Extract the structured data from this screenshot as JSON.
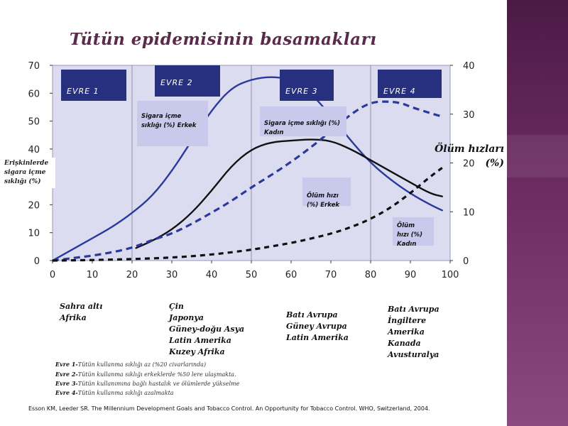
{
  "title": "Tütün epidemisinin basamakları",
  "right_axis_title": "Ölüm hızları (%)",
  "left_axis_title": "Erişkinlerde sigara içme sıklığı (%)",
  "stages": [
    {
      "label": "EVRE 1"
    },
    {
      "label": "EVRE 2"
    },
    {
      "label": "EVRE 3"
    },
    {
      "label": "EVRE 4"
    }
  ],
  "series_labels": [
    "Sigara içme sıklığı (%) Erkek",
    "Sigara içme sıklığı (%) Kadın",
    "Ölüm hızı (%) Erkek",
    "Ölüm hızı (%) Kadın"
  ],
  "regions": [
    [
      "Sahra altı",
      "Afrika"
    ],
    [
      "Çin",
      "Japonya",
      "Güney-doğu Asya",
      "Latin Amerika",
      "Kuzey Afrika"
    ],
    [
      "Batı Avrupa",
      "Güney Avrupa",
      "Latin Amerika"
    ],
    [
      "Batı Avrupa",
      "İngiltere",
      "Amerika",
      "Kanada",
      "Avusturalya"
    ]
  ],
  "notes": [
    {
      "label": "Evre 1-",
      "text": "Tütün kullanma sıklığı az (%20 civarlarında)"
    },
    {
      "label": "Evre 2-",
      "text": "Tütün kullanma sıklığı erkeklerde %50 lere ulaşmakta."
    },
    {
      "label": "Evre 3-",
      "text": "Tütün kullanımına bağlı hastalık ve ölümlerde yükselme"
    },
    {
      "label": "Evre 4-",
      "text": "Tütün kullanma sıklığı azalmakta"
    }
  ],
  "citation": "Esson KM, Leeder SR. The Millennium Development Goals and Tobacco Control. An Opportunity for Tobacco Control. WHO, Switzerland, 2004.",
  "colors": {
    "plot_bg": "#dcdcf0",
    "male_smoking": "#2b3a9a",
    "female_smoking": "#111111",
    "male_death": "#2b3a9a",
    "female_death": "#111111",
    "stage_box": "#26307f",
    "label_box": "#c9c9ec",
    "title": "#5a2a4a"
  },
  "chart_data": {
    "type": "line",
    "x_ticks": [
      0,
      10,
      20,
      30,
      40,
      50,
      60,
      70,
      80,
      90,
      100
    ],
    "left_y_ticks": [
      0,
      10,
      20,
      30,
      40,
      50,
      60,
      70
    ],
    "right_y_ticks": [
      0,
      10,
      20,
      30,
      40
    ],
    "xlim": [
      0,
      100
    ],
    "left_ylim": [
      0,
      70
    ],
    "right_ylim": [
      0,
      40
    ],
    "stage_dividers": [
      20,
      50,
      80
    ],
    "series": [
      {
        "name": "Sigara içme sıklığı (%) Erkek",
        "axis": "left",
        "style": "solid",
        "color": "#2b3a9a",
        "x": [
          0,
          5,
          10,
          15,
          20,
          25,
          30,
          35,
          40,
          45,
          50,
          55,
          60,
          65,
          70,
          75,
          80,
          85,
          90,
          95,
          98
        ],
        "y": [
          0,
          4,
          8,
          12,
          17,
          23,
          32,
          43,
          54,
          62,
          65,
          66,
          65,
          60,
          52,
          43,
          35,
          29,
          24,
          20,
          18
        ]
      },
      {
        "name": "Sigara içme sıklığı (%) Kadın",
        "axis": "left",
        "style": "solid",
        "color": "#111111",
        "x": [
          21,
          25,
          30,
          35,
          40,
          45,
          50,
          55,
          60,
          65,
          70,
          75,
          80,
          85,
          90,
          95,
          98
        ],
        "y": [
          4.5,
          7,
          11,
          17,
          25,
          34,
          40,
          42.5,
          43,
          43.5,
          43,
          40,
          36,
          32,
          28,
          24,
          23
        ]
      },
      {
        "name": "Ölüm hızı (%) Erkek",
        "axis": "right",
        "style": "dashed",
        "color": "#2b3a9a",
        "x": [
          0,
          5,
          10,
          15,
          20,
          25,
          30,
          35,
          40,
          45,
          50,
          55,
          60,
          65,
          70,
          75,
          80,
          85,
          88,
          90,
          95,
          98
        ],
        "y": [
          0,
          0.5,
          1,
          1.7,
          2.6,
          4.2,
          5.5,
          7.5,
          9.8,
          12.2,
          15,
          17.5,
          20.2,
          23.2,
          26.5,
          30,
          32.5,
          32.6,
          32.2,
          31.5,
          30.2,
          29.5
        ]
      },
      {
        "name": "Ölüm hızı (%) Kadın",
        "axis": "right",
        "style": "dashed",
        "color": "#111111",
        "x": [
          0,
          10,
          20,
          30,
          40,
          50,
          55,
          60,
          65,
          70,
          75,
          80,
          85,
          90,
          95,
          98
        ],
        "y": [
          0,
          0.1,
          0.3,
          0.6,
          1.2,
          2.2,
          2.9,
          3.6,
          4.5,
          5.5,
          6.8,
          8.5,
          10.8,
          13.8,
          17.2,
          19
        ]
      }
    ]
  }
}
